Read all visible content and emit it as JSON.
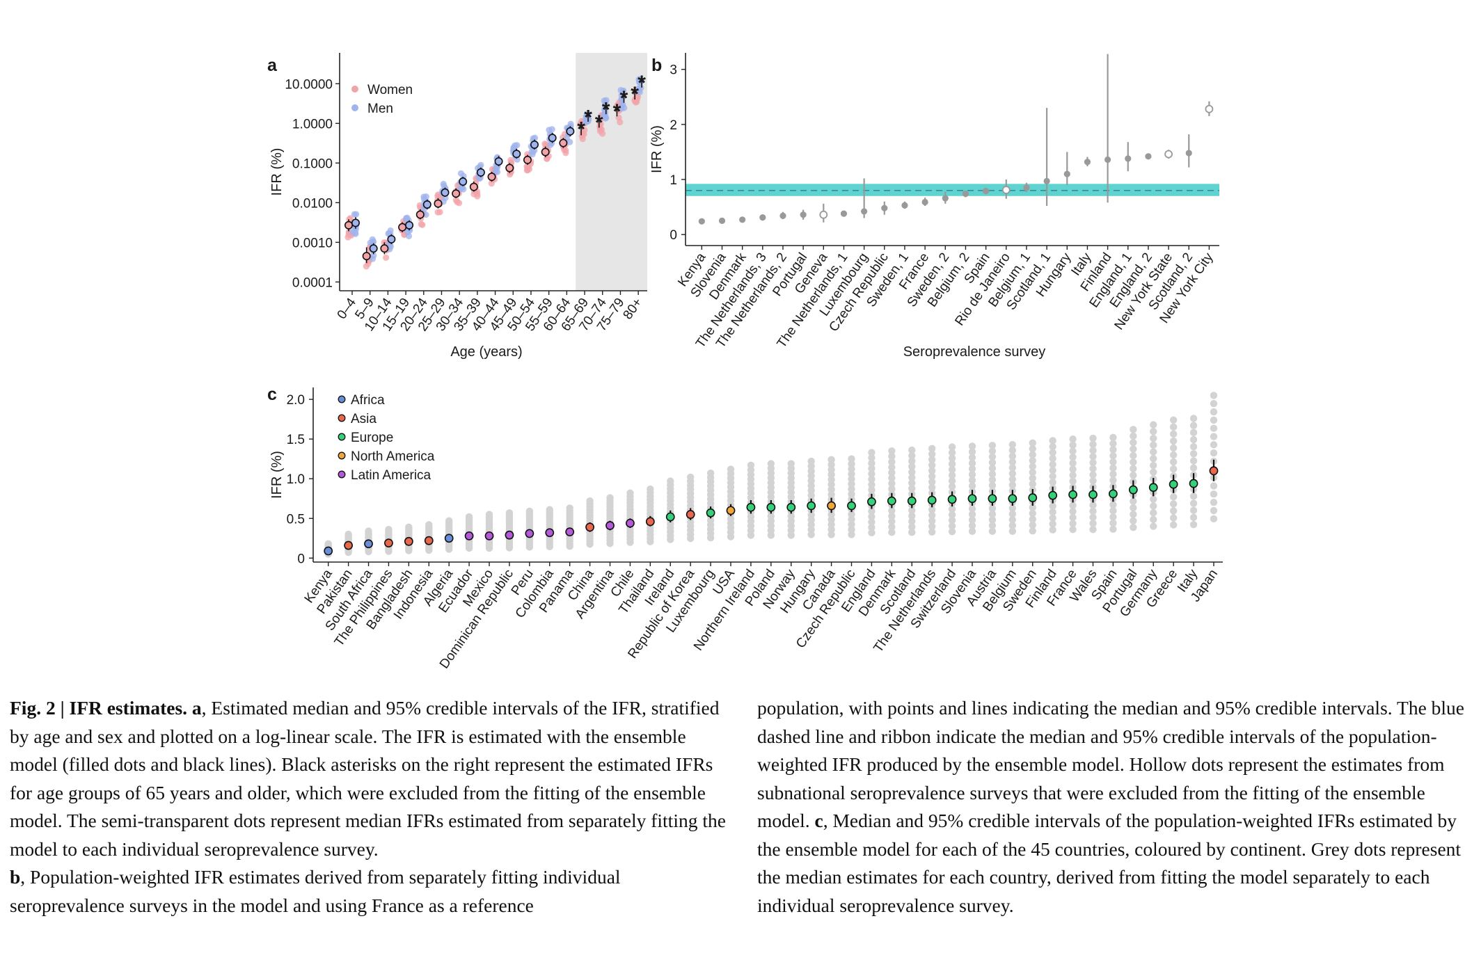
{
  "chart_data": [
    {
      "panel": "a",
      "type": "scatter",
      "ylabel": "IFR (%)",
      "xlabel": "Age (years)",
      "yscale": "log",
      "ylim": [
        6e-05,
        60
      ],
      "yticks": [
        "10.0000",
        "1.0000",
        "0.1000",
        "0.0100",
        "0.0010",
        "0.0001"
      ],
      "ytick_values": [
        10,
        1,
        0.1,
        0.01,
        0.001,
        0.0001
      ],
      "shaded_categories": [
        "65–69",
        "70–74",
        "75–79",
        "80+"
      ],
      "legend_position": "top-left",
      "categories": [
        "0–4",
        "5–9",
        "10–14",
        "15–19",
        "20–24",
        "25–29",
        "30–34",
        "35–39",
        "40–44",
        "45–49",
        "50–54",
        "55–59",
        "60–64",
        "65–69",
        "70–74",
        "75–79",
        "80+"
      ],
      "series": [
        {
          "name": "Women",
          "color": "#f2a3a8",
          "median": [
            0.0027,
            0.00045,
            0.0007,
            0.0024,
            0.005,
            0.0095,
            0.017,
            0.025,
            0.045,
            0.075,
            0.12,
            0.19,
            0.32,
            0.7,
            1.05,
            2.1,
            5.5
          ],
          "ci_low": [
            0.0019,
            0.0003,
            0.0005,
            0.0018,
            0.0038,
            0.0072,
            0.013,
            0.019,
            0.034,
            0.056,
            0.09,
            0.14,
            0.24,
            0.5,
            0.78,
            1.5,
            4.0
          ],
          "ci_high": [
            0.0038,
            0.00075,
            0.001,
            0.0032,
            0.0068,
            0.013,
            0.023,
            0.034,
            0.06,
            0.1,
            0.16,
            0.26,
            0.43,
            0.95,
            1.4,
            2.9,
            7.5
          ],
          "asterisk": [
            null,
            null,
            null,
            null,
            null,
            null,
            null,
            null,
            null,
            null,
            null,
            null,
            null,
            0.75,
            1.1,
            2.1,
            5.8
          ]
        },
        {
          "name": "Men",
          "color": "#9fb3ec",
          "median": [
            0.0031,
            0.0007,
            0.0012,
            0.0027,
            0.009,
            0.018,
            0.034,
            0.058,
            0.11,
            0.17,
            0.29,
            0.43,
            0.63,
            1.5,
            2.3,
            4.5,
            11.0
          ],
          "ci_low": [
            0.0022,
            0.0005,
            0.0009,
            0.002,
            0.0068,
            0.014,
            0.026,
            0.044,
            0.083,
            0.13,
            0.22,
            0.32,
            0.47,
            1.1,
            1.7,
            3.3,
            8.0
          ],
          "ci_high": [
            0.0043,
            0.00095,
            0.0016,
            0.0036,
            0.012,
            0.024,
            0.045,
            0.077,
            0.15,
            0.23,
            0.39,
            0.58,
            0.85,
            2.0,
            3.1,
            6.0,
            14.5
          ],
          "asterisk": [
            null,
            null,
            null,
            null,
            null,
            null,
            null,
            null,
            null,
            null,
            null,
            null,
            null,
            1.5,
            2.3,
            4.5,
            11.0
          ]
        }
      ]
    },
    {
      "panel": "b",
      "type": "scatter",
      "ylabel": "IFR (%)",
      "xlabel": "Seroprevalence survey",
      "ylim": [
        -0.2,
        3.3
      ],
      "yticks": [
        0,
        1,
        2,
        3
      ],
      "reference_line": {
        "median": 0.8,
        "ci_low": 0.7,
        "ci_high": 0.92,
        "color": "#5fd3d0"
      },
      "point_color": "#999999",
      "categories": [
        "Kenya",
        "Slovenia",
        "Denmark",
        "The Netherlands, 3",
        "The Netherlands, 2",
        "Portugal",
        "Geneva",
        "The Netherlands, 1",
        "Luxembourg",
        "Czech Republic",
        "Sweden, 1",
        "France",
        "Sweden, 2",
        "Belgium, 2",
        "Spain",
        "Rio de Janeiro",
        "Belgium, 1",
        "Scotland, 1",
        "Hungary",
        "Italy",
        "Finland",
        "England, 1",
        "England, 2",
        "New York State",
        "Scotland, 2",
        "New York City"
      ],
      "values": [
        0.24,
        0.25,
        0.27,
        0.31,
        0.34,
        0.36,
        0.36,
        0.38,
        0.42,
        0.48,
        0.53,
        0.59,
        0.66,
        0.74,
        0.79,
        0.81,
        0.85,
        0.97,
        1.1,
        1.32,
        1.36,
        1.38,
        1.42,
        1.46,
        1.48,
        2.28
      ],
      "ci_low": [
        0.22,
        0.23,
        0.24,
        0.28,
        0.28,
        0.27,
        0.22,
        0.34,
        0.3,
        0.36,
        0.47,
        0.52,
        0.56,
        0.68,
        0.76,
        0.65,
        0.77,
        0.52,
        0.9,
        1.24,
        0.58,
        1.15,
        1.38,
        1.38,
        1.22,
        2.15
      ],
      "ci_high": [
        0.26,
        0.27,
        0.3,
        0.34,
        0.41,
        0.45,
        0.56,
        0.43,
        1.02,
        0.6,
        0.6,
        0.67,
        0.78,
        0.79,
        0.82,
        1.0,
        0.94,
        2.3,
        1.5,
        1.41,
        3.28,
        1.68,
        1.46,
        1.54,
        1.82,
        2.42
      ],
      "hollow": [
        false,
        false,
        false,
        false,
        false,
        false,
        true,
        false,
        false,
        false,
        false,
        false,
        false,
        false,
        false,
        true,
        false,
        false,
        false,
        false,
        false,
        false,
        false,
        true,
        false,
        true
      ]
    },
    {
      "panel": "c",
      "type": "scatter",
      "ylabel": "IFR (%)",
      "ylim": [
        -0.05,
        2.15
      ],
      "yticks": [
        "0",
        "0.5",
        "1.0",
        "1.5",
        "2.0"
      ],
      "ytick_values": [
        0,
        0.5,
        1.0,
        1.5,
        2.0
      ],
      "legend_position": "top-left",
      "legend": [
        {
          "name": "Africa",
          "color": "#6b8fd6"
        },
        {
          "name": "Asia",
          "color": "#e8684f"
        },
        {
          "name": "Europe",
          "color": "#34d17a"
        },
        {
          "name": "North America",
          "color": "#f0a63a"
        },
        {
          "name": "Latin America",
          "color": "#b25ad8"
        }
      ],
      "categories": [
        "Kenya",
        "Pakistan",
        "South Africa",
        "The Philippines",
        "Bangladesh",
        "Indonesia",
        "Algeria",
        "Ecuador",
        "Mexico",
        "Dominican Republic",
        "Peru",
        "Colombia",
        "Panama",
        "China",
        "Argentina",
        "Chile",
        "Thailand",
        "Ireland",
        "Republic of Korea",
        "Luxembourg",
        "USA",
        "Northern Ireland",
        "Poland",
        "Norway",
        "Hungary",
        "Canada",
        "Czech Republic",
        "England",
        "Denmark",
        "Scotland",
        "The Netherlands",
        "Switzerland",
        "Slovenia",
        "Austria",
        "Belgium",
        "Sweden",
        "Finland",
        "France",
        "Wales",
        "Spain",
        "Portugal",
        "Germany",
        "Greece",
        "Italy",
        "Japan"
      ],
      "continent": [
        "Africa",
        "Asia",
        "Africa",
        "Asia",
        "Asia",
        "Asia",
        "Africa",
        "Latin America",
        "Latin America",
        "Latin America",
        "Latin America",
        "Latin America",
        "Latin America",
        "Asia",
        "Latin America",
        "Latin America",
        "Asia",
        "Europe",
        "Asia",
        "Europe",
        "North America",
        "Europe",
        "Europe",
        "Europe",
        "Europe",
        "North America",
        "Europe",
        "Europe",
        "Europe",
        "Europe",
        "Europe",
        "Europe",
        "Europe",
        "Europe",
        "Europe",
        "Europe",
        "Europe",
        "Europe",
        "Europe",
        "Europe",
        "Europe",
        "Europe",
        "Europe",
        "Europe",
        "Asia"
      ],
      "values": [
        0.09,
        0.16,
        0.18,
        0.19,
        0.21,
        0.22,
        0.25,
        0.28,
        0.28,
        0.29,
        0.31,
        0.32,
        0.33,
        0.39,
        0.41,
        0.44,
        0.46,
        0.52,
        0.55,
        0.57,
        0.6,
        0.64,
        0.64,
        0.64,
        0.66,
        0.66,
        0.66,
        0.71,
        0.72,
        0.72,
        0.73,
        0.74,
        0.75,
        0.75,
        0.75,
        0.76,
        0.79,
        0.8,
        0.8,
        0.81,
        0.86,
        0.89,
        0.93,
        0.94,
        1.1
      ],
      "ci_low": [
        0.06,
        0.13,
        0.15,
        0.16,
        0.18,
        0.19,
        0.22,
        0.25,
        0.25,
        0.26,
        0.27,
        0.28,
        0.29,
        0.33,
        0.35,
        0.38,
        0.4,
        0.45,
        0.48,
        0.5,
        0.53,
        0.56,
        0.56,
        0.56,
        0.57,
        0.57,
        0.58,
        0.62,
        0.63,
        0.63,
        0.64,
        0.65,
        0.66,
        0.66,
        0.66,
        0.66,
        0.69,
        0.7,
        0.7,
        0.71,
        0.75,
        0.78,
        0.82,
        0.82,
        0.97
      ],
      "ci_high": [
        0.12,
        0.19,
        0.21,
        0.22,
        0.24,
        0.25,
        0.29,
        0.32,
        0.32,
        0.33,
        0.35,
        0.36,
        0.38,
        0.45,
        0.47,
        0.5,
        0.53,
        0.6,
        0.63,
        0.65,
        0.68,
        0.73,
        0.73,
        0.73,
        0.75,
        0.76,
        0.75,
        0.81,
        0.82,
        0.82,
        0.83,
        0.84,
        0.86,
        0.86,
        0.86,
        0.87,
        0.9,
        0.91,
        0.91,
        0.92,
        0.98,
        1.01,
        1.05,
        1.07,
        1.24
      ],
      "grey_range_max": [
        0.18,
        0.3,
        0.34,
        0.36,
        0.39,
        0.42,
        0.47,
        0.52,
        0.55,
        0.57,
        0.59,
        0.61,
        0.63,
        0.72,
        0.76,
        0.82,
        0.87,
        0.97,
        1.02,
        1.07,
        1.12,
        1.17,
        1.19,
        1.19,
        1.22,
        1.24,
        1.25,
        1.33,
        1.35,
        1.36,
        1.38,
        1.4,
        1.41,
        1.42,
        1.43,
        1.45,
        1.48,
        1.5,
        1.51,
        1.52,
        1.62,
        1.68,
        1.74,
        1.76,
        2.05
      ]
    }
  ],
  "panel_labels": [
    "a",
    "b",
    "c"
  ],
  "caption": {
    "label": "Fig. 2 | IFR estimates.",
    "left_paragraphs": [
      [
        {
          "t": "a",
          "b": true
        },
        {
          "t": ", Estimated median and 95% credible intervals of the IFR, stratified by age and sex and plotted on a log-linear scale. The IFR is estimated with the ensemble model (filled dots and black lines). Black asterisks on the right represent the estimated IFRs for age groups of 65 years and older, which were excluded from the fitting of the ensemble model. The semi-transparent dots represent median IFRs estimated from separately fitting the model to each individual seroprevalence survey.",
          "b": false
        }
      ],
      [
        {
          "t": "b",
          "b": true
        },
        {
          "t": ", Population-weighted IFR estimates derived from separately fitting individual seroprevalence surveys in the model and using France as a reference",
          "b": false
        }
      ]
    ],
    "right_paragraphs": [
      [
        {
          "t": "population, with points and lines indicating the median and 95% credible intervals. The blue dashed line and ribbon indicate the median and 95% credible intervals of the population-weighted IFR produced by the ensemble model. Hollow dots represent the estimates from subnational seroprevalence surveys that were excluded from the fitting of the ensemble model. ",
          "b": false
        },
        {
          "t": "c",
          "b": true
        },
        {
          "t": ", Median and 95% credible intervals of the population-weighted IFRs estimated by the ensemble model for each of the 45 countries, coloured by continent. Grey dots represent the median estimates for each country, derived from fitting the model separately to each individual seroprevalence survey.",
          "b": false
        }
      ]
    ]
  }
}
